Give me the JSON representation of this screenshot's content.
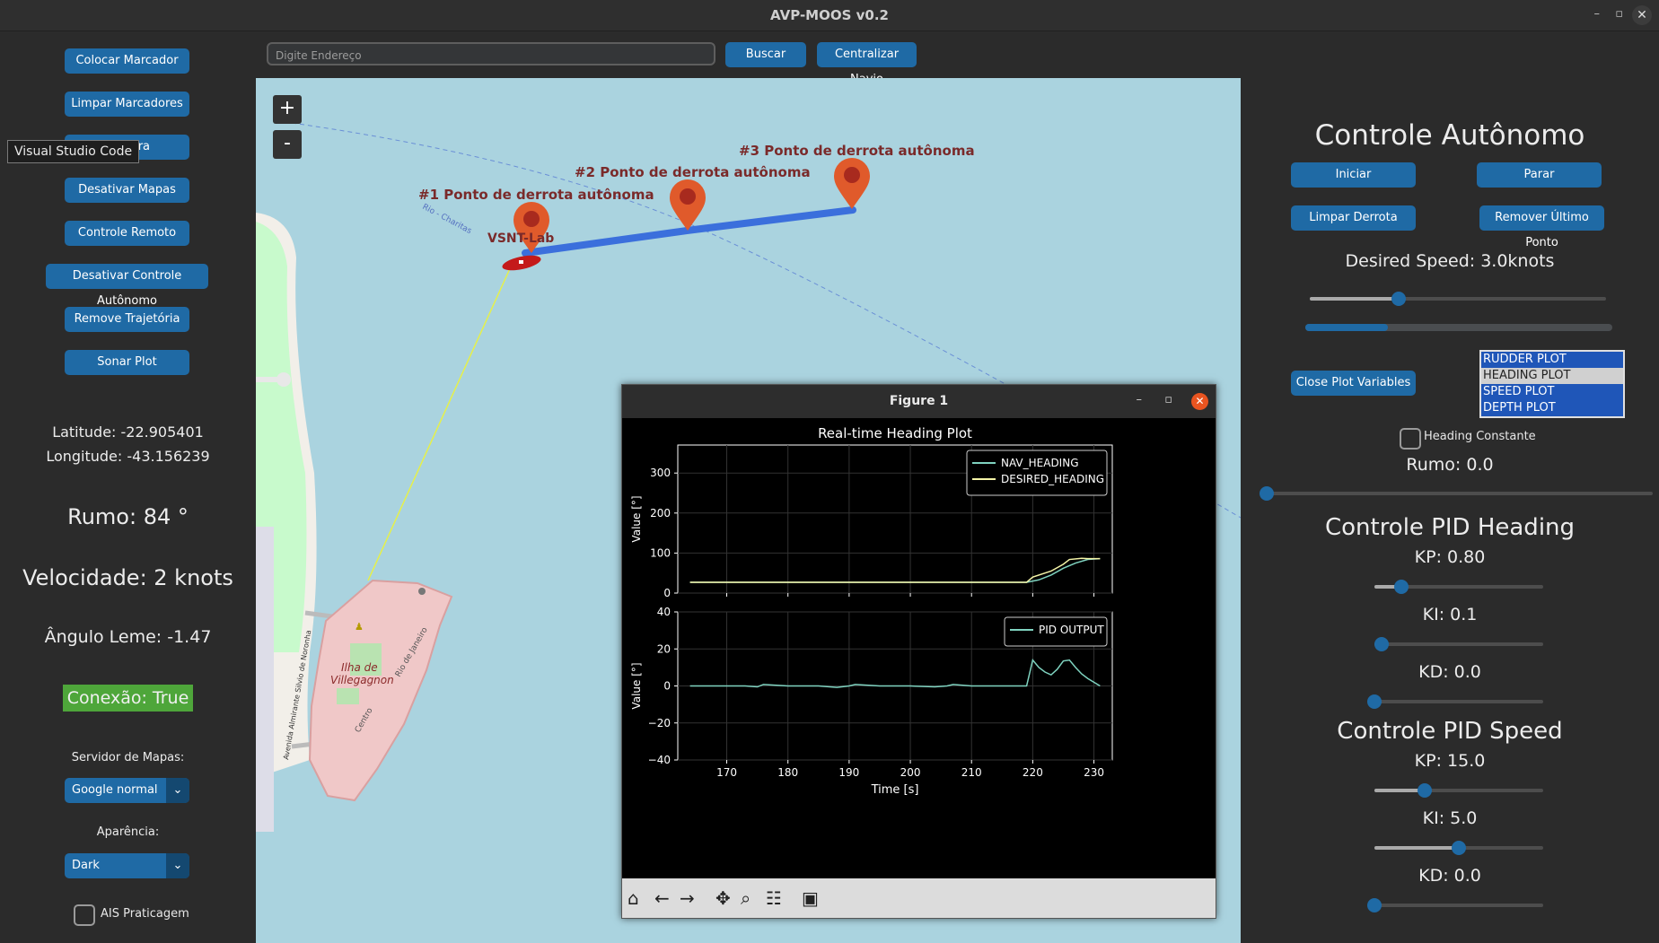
{
  "window": {
    "title": "AVP-MOOS v0.2",
    "min_icon": "–",
    "max_icon": "▫",
    "close_icon": "✕"
  },
  "left": {
    "buttons": [
      "Colocar Marcador",
      "Limpar Marcadores",
      "Câmera",
      "Desativar Mapas",
      "Controle Remoto",
      "Desativar Controle Autônomo",
      "Remove Trajetória",
      "Sonar Plot"
    ],
    "tooltip": "Visual Studio Code",
    "latitude": "Latitude: -22.905401",
    "longitude": "Longitude: -43.156239",
    "rumo": "Rumo: 84 °",
    "velocidade": "Velocidade: 2 knots",
    "angulo": "Ângulo Leme: -1.47",
    "conexao": "Conexão: True",
    "servidor_label": "Servidor de Mapas:",
    "servidor_value": "Google normal",
    "aparencia_label": "Aparência:",
    "aparencia_value": "Dark",
    "ais_label": "AIS Praticagem"
  },
  "top": {
    "address_placeholder": "Digite Endereço",
    "buscar": "Buscar",
    "centralizar": "Centralizar Navio"
  },
  "map": {
    "zoom_in": "+",
    "zoom_out": "-",
    "waypoint1": "#1 Ponto de derrota autônoma",
    "waypoint2": "#2 Ponto de derrota autônoma",
    "waypoint3": "#3 Ponto de derrota autônoma",
    "vessel_label": "VSNT-Lab",
    "island_label_1": "Ilha de",
    "island_label_2": "Villegagnon",
    "street_noronha": "Avenida Almirante Silvio de Noronha",
    "street_rio": "Rio de Janeiro",
    "street_centro": "Centro",
    "route_label": "Rio - Charitas",
    "colors": {
      "water": "#aad3df",
      "land": "#f2efe9",
      "park": "#c8facc",
      "route": "#3b6fdc",
      "marker": "#e05a2b",
      "vessel": "#c41a1a"
    }
  },
  "right": {
    "title": "Controle Autônomo",
    "iniciar": "Iniciar",
    "parar": "Parar",
    "limpar_derrota": "Limpar Derrota",
    "remover_ultimo": "Remover Último Ponto",
    "desired_speed": "Desired Speed: 3.0knots",
    "desired_speed_level": 0.3,
    "progress_level": 0.27,
    "close_plot": "Close Plot Variables",
    "plot_options": [
      "RUDDER PLOT",
      "HEADING PLOT",
      "SPEED PLOT",
      "DEPTH PLOT"
    ],
    "plot_selected": "HEADING PLOT",
    "heading_constante": "Heading Constante",
    "rumo": "Rumo: 0.0",
    "rumo_level": 0.0,
    "pid_heading_title": "Controle PID Heading",
    "heading_kp": "KP: 0.80",
    "heading_kp_level": 0.16,
    "heading_ki": "KI: 0.1",
    "heading_ki_level": 0.04,
    "heading_kd": "KD: 0.0",
    "heading_kd_level": 0.0,
    "pid_speed_title": "Controle PID Speed",
    "speed_kp": "KP: 15.0",
    "speed_kp_level": 0.3,
    "speed_ki": "KI: 5.0",
    "speed_ki_level": 0.5,
    "speed_kd": "KD: 0.0",
    "speed_kd_level": 0.0
  },
  "figure": {
    "window_title": "Figure 1",
    "toolbar_icons": [
      "home-icon",
      "back-icon",
      "forward-icon",
      "pan-icon",
      "zoom-icon",
      "configure-icon",
      "save-icon"
    ]
  },
  "chart_data": [
    {
      "type": "line",
      "title": "Real-time Heading Plot",
      "xlabel": "",
      "ylabel": "Value [°]",
      "xlim": [
        162,
        233
      ],
      "ylim": [
        0,
        370
      ],
      "yticks": [
        0,
        100,
        200,
        300
      ],
      "grid": true,
      "legend": "top-right",
      "series": [
        {
          "name": "NAV_HEADING",
          "color": "#7fd3c0",
          "x": [
            164,
            175,
            185,
            195,
            205,
            215,
            219,
            221,
            223,
            225,
            227,
            229,
            231
          ],
          "y": [
            27,
            27,
            27,
            27,
            27,
            27,
            27,
            33,
            45,
            62,
            75,
            84,
            86
          ]
        },
        {
          "name": "DESIRED_HEADING",
          "color": "#f5f5a8",
          "x": [
            164,
            175,
            185,
            195,
            205,
            215,
            219,
            220,
            223,
            225,
            226,
            228,
            229,
            231
          ],
          "y": [
            27,
            27,
            27,
            27,
            27,
            27,
            27,
            40,
            55,
            72,
            84,
            87,
            86,
            86
          ]
        }
      ]
    },
    {
      "type": "line",
      "title": "",
      "xlabel": "Time [s]",
      "ylabel": "Value [°]",
      "xlim": [
        162,
        233
      ],
      "ylim": [
        -40,
        40
      ],
      "yticks": [
        -40,
        -20,
        0,
        20,
        40
      ],
      "xticks": [
        170,
        180,
        190,
        200,
        210,
        220,
        230
      ],
      "grid": true,
      "legend": "top-right",
      "series": [
        {
          "name": "PID OUTPUT",
          "color": "#7fd3c0",
          "x": [
            164,
            170,
            173,
            175,
            176,
            180,
            185,
            188,
            190,
            191,
            195,
            200,
            204,
            206,
            207,
            210,
            215,
            219,
            220,
            221,
            222,
            223,
            224,
            225,
            226,
            227,
            228,
            229,
            230,
            231
          ],
          "y": [
            0,
            0,
            0,
            -0.5,
            0.8,
            0,
            0,
            -0.8,
            0,
            0.8,
            0,
            0,
            -0.5,
            0,
            0.8,
            0,
            0,
            0,
            14,
            10,
            7.5,
            6,
            9,
            13.5,
            14,
            10,
            6.5,
            4,
            2,
            0
          ]
        }
      ]
    }
  ]
}
